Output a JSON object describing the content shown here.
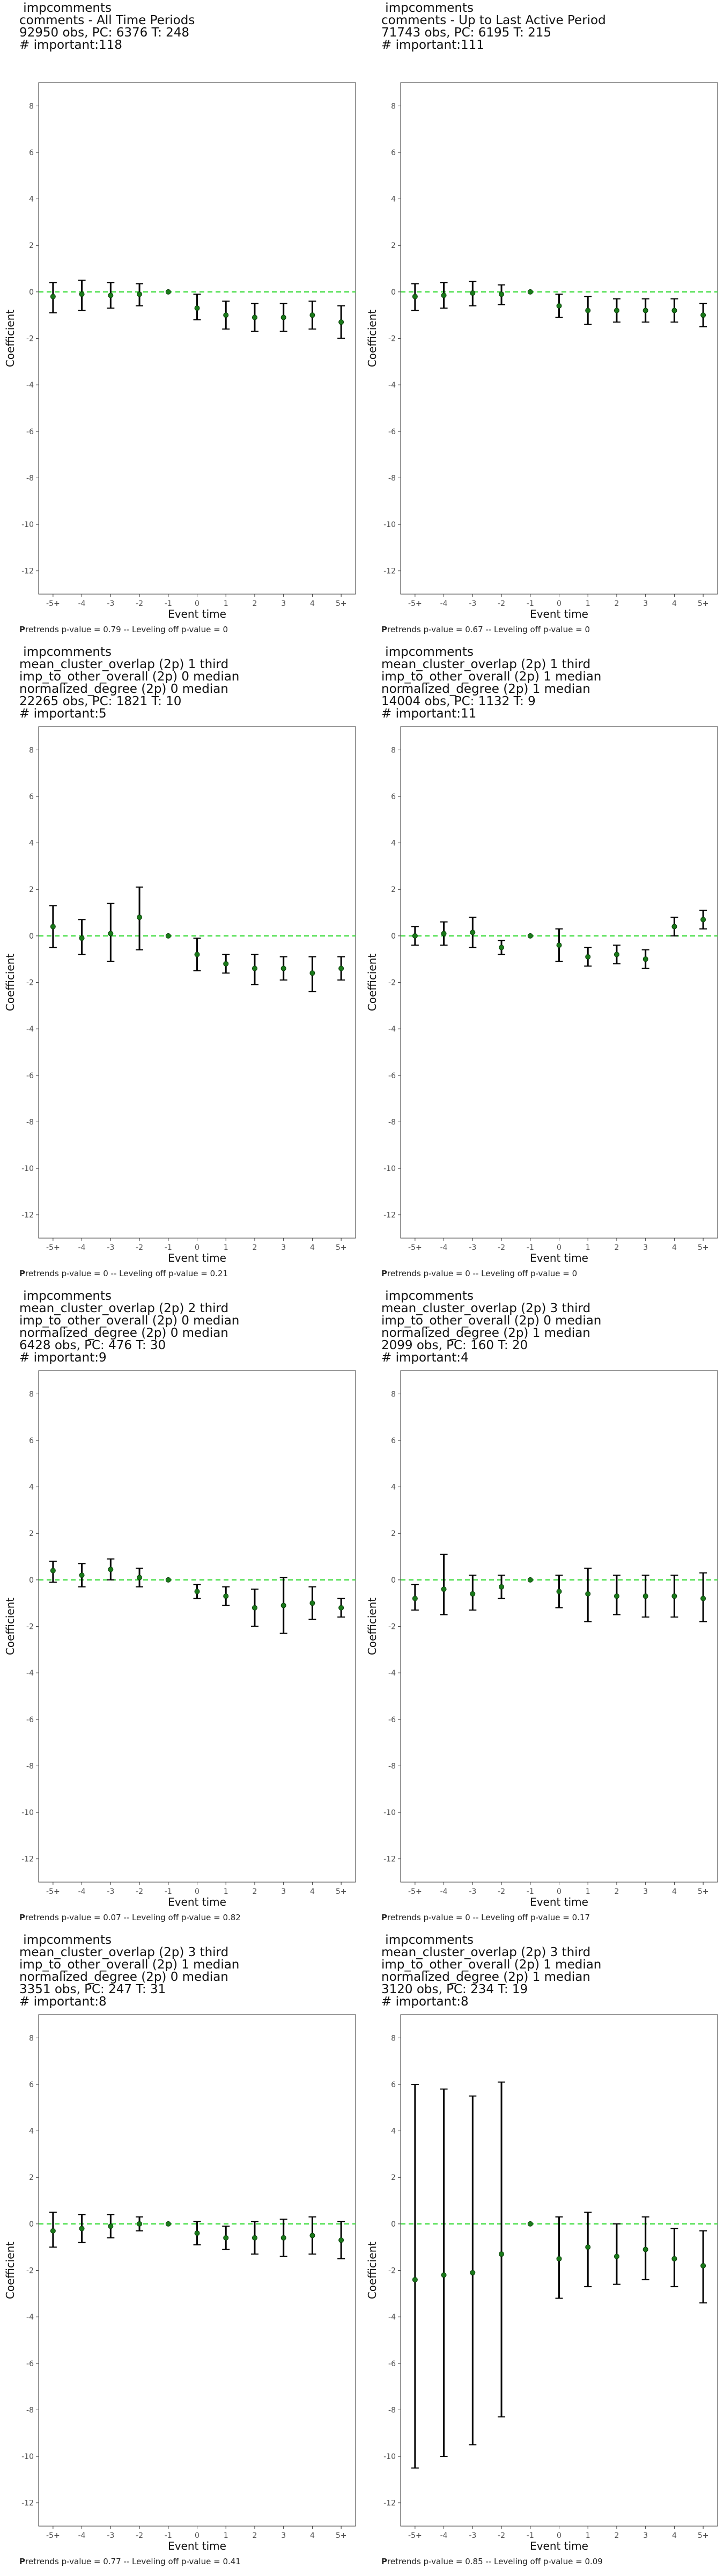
{
  "chart_data": [
    {
      "type": "scatter",
      "title_lines": [
        " impcomments",
        "comments - All Time Periods",
        "92950 obs, PC: 6376 T: 248",
        "# important:118"
      ],
      "xlabel": "Event time",
      "ylabel": "Coefficient",
      "categories": [
        "-5+",
        "-4",
        "-3",
        "-2",
        "-1",
        "0",
        "1",
        "2",
        "3",
        "4",
        "5+"
      ],
      "ylim": [
        -13,
        9
      ],
      "yticks": [
        -12,
        -10,
        -8,
        -6,
        -4,
        -2,
        0,
        2,
        4,
        6,
        8
      ],
      "estimates": [
        -0.2,
        -0.1,
        -0.15,
        -0.1,
        0.0,
        -0.7,
        -1.0,
        -1.1,
        -1.1,
        -1.0,
        -1.3
      ],
      "ci_lower": [
        -0.9,
        -0.8,
        -0.7,
        -0.6,
        0.0,
        -1.2,
        -1.6,
        -1.7,
        -1.7,
        -1.6,
        -2.0
      ],
      "ci_upper": [
        0.4,
        0.5,
        0.4,
        0.35,
        0.0,
        -0.1,
        -0.4,
        -0.5,
        -0.5,
        -0.4,
        -0.6
      ],
      "reference_line": 0,
      "footer_prefix": "P",
      "footer_rest": "retrends p-value = 0.79 -- Leveling off p-value = 0"
    },
    {
      "type": "scatter",
      "title_lines": [
        " impcomments",
        "comments - Up to Last Active Period",
        "71743 obs, PC: 6195 T: 215",
        "# important:111"
      ],
      "xlabel": "Event time",
      "ylabel": "Coefficient",
      "categories": [
        "-5+",
        "-4",
        "-3",
        "-2",
        "-1",
        "0",
        "1",
        "2",
        "3",
        "4",
        "5+"
      ],
      "ylim": [
        -13,
        9
      ],
      "yticks": [
        -12,
        -10,
        -8,
        -6,
        -4,
        -2,
        0,
        2,
        4,
        6,
        8
      ],
      "estimates": [
        -0.2,
        -0.15,
        -0.05,
        -0.1,
        0.0,
        -0.6,
        -0.8,
        -0.8,
        -0.8,
        -0.8,
        -1.0
      ],
      "ci_lower": [
        -0.8,
        -0.7,
        -0.6,
        -0.55,
        0.0,
        -1.1,
        -1.4,
        -1.3,
        -1.3,
        -1.3,
        -1.5
      ],
      "ci_upper": [
        0.35,
        0.4,
        0.45,
        0.3,
        0.0,
        -0.1,
        -0.2,
        -0.3,
        -0.3,
        -0.3,
        -0.5
      ],
      "reference_line": 0,
      "footer_prefix": "P",
      "footer_rest": "retrends p-value = 0.67 -- Leveling off p-value = 0"
    },
    {
      "type": "scatter",
      "title_lines": [
        " impcomments",
        "mean_cluster_overlap (2p) 1 third",
        "imp_to_other_overall (2p) 0 median",
        "normalized_degree (2p) 0 median",
        "22265 obs, PC: 1821 T: 10",
        "# important:5"
      ],
      "xlabel": "Event time",
      "ylabel": "Coefficient",
      "categories": [
        "-5+",
        "-4",
        "-3",
        "-2",
        "-1",
        "0",
        "1",
        "2",
        "3",
        "4",
        "5+"
      ],
      "ylim": [
        -13,
        9
      ],
      "yticks": [
        -12,
        -10,
        -8,
        -6,
        -4,
        -2,
        0,
        2,
        4,
        6,
        8
      ],
      "estimates": [
        0.4,
        -0.1,
        0.1,
        0.8,
        0.0,
        -0.8,
        -1.2,
        -1.4,
        -1.4,
        -1.6,
        -1.4
      ],
      "ci_lower": [
        -0.5,
        -0.8,
        -1.1,
        -0.6,
        0.0,
        -1.5,
        -1.6,
        -2.1,
        -1.9,
        -2.4,
        -1.9
      ],
      "ci_upper": [
        1.3,
        0.7,
        1.4,
        2.1,
        0.0,
        -0.1,
        -0.8,
        -0.8,
        -0.9,
        -0.9,
        -0.9
      ],
      "reference_line": 0,
      "footer_prefix": "P",
      "footer_rest": "retrends p-value = 0 -- Leveling off p-value = 0.21"
    },
    {
      "type": "scatter",
      "title_lines": [
        " impcomments",
        "mean_cluster_overlap (2p) 1 third",
        "imp_to_other_overall (2p) 1 median",
        "normalized_degree (2p) 1 median",
        "14004 obs, PC: 1132 T: 9",
        "# important:11"
      ],
      "xlabel": "Event time",
      "ylabel": "Coefficient",
      "categories": [
        "-5+",
        "-4",
        "-3",
        "-2",
        "-1",
        "0",
        "1",
        "2",
        "3",
        "4",
        "5+"
      ],
      "ylim": [
        -13,
        9
      ],
      "yticks": [
        -12,
        -10,
        -8,
        -6,
        -4,
        -2,
        0,
        2,
        4,
        6,
        8
      ],
      "estimates": [
        0.0,
        0.1,
        0.15,
        -0.5,
        0.0,
        -0.4,
        -0.9,
        -0.8,
        -1.0,
        0.4,
        0.7
      ],
      "ci_lower": [
        -0.4,
        -0.4,
        -0.5,
        -0.8,
        0.0,
        -1.1,
        -1.3,
        -1.2,
        -1.4,
        0.0,
        0.3
      ],
      "ci_upper": [
        0.4,
        0.6,
        0.8,
        -0.2,
        0.0,
        0.3,
        -0.5,
        -0.4,
        -0.6,
        0.8,
        1.1
      ],
      "reference_line": 0,
      "footer_prefix": "P",
      "footer_rest": "retrends p-value = 0 -- Leveling off p-value = 0"
    },
    {
      "type": "scatter",
      "title_lines": [
        " impcomments",
        "mean_cluster_overlap (2p) 2 third",
        "imp_to_other_overall (2p) 0 median",
        "normalized_degree (2p) 0 median",
        "6428 obs, PC: 476 T: 30",
        "# important:9"
      ],
      "xlabel": "Event time",
      "ylabel": "Coefficient",
      "categories": [
        "-5+",
        "-4",
        "-3",
        "-2",
        "-1",
        "0",
        "1",
        "2",
        "3",
        "4",
        "5+"
      ],
      "ylim": [
        -13,
        9
      ],
      "yticks": [
        -12,
        -10,
        -8,
        -6,
        -4,
        -2,
        0,
        2,
        4,
        6,
        8
      ],
      "estimates": [
        0.4,
        0.2,
        0.45,
        0.1,
        0.0,
        -0.5,
        -0.7,
        -1.2,
        -1.1,
        -1.0,
        -1.2
      ],
      "ci_lower": [
        -0.1,
        -0.3,
        0.0,
        -0.3,
        0.0,
        -0.8,
        -1.1,
        -2.0,
        -2.3,
        -1.7,
        -1.6
      ],
      "ci_upper": [
        0.8,
        0.7,
        0.9,
        0.5,
        0.0,
        -0.2,
        -0.3,
        -0.4,
        0.1,
        -0.3,
        -0.8
      ],
      "reference_line": 0,
      "footer_prefix": "P",
      "footer_rest": "retrends p-value = 0.07 -- Leveling off p-value = 0.82"
    },
    {
      "type": "scatter",
      "title_lines": [
        " impcomments",
        "mean_cluster_overlap (2p) 3 third",
        "imp_to_other_overall (2p) 0 median",
        "normalized_degree (2p) 1 median",
        "2099 obs, PC: 160 T: 20",
        "# important:4"
      ],
      "xlabel": "Event time",
      "ylabel": "Coefficient",
      "categories": [
        "-5+",
        "-4",
        "-3",
        "-2",
        "-1",
        "0",
        "1",
        "2",
        "3",
        "4",
        "5+"
      ],
      "ylim": [
        -13,
        9
      ],
      "yticks": [
        -12,
        -10,
        -8,
        -6,
        -4,
        -2,
        0,
        2,
        4,
        6,
        8
      ],
      "estimates": [
        -0.8,
        -0.4,
        -0.6,
        -0.3,
        0.0,
        -0.5,
        -0.6,
        -0.7,
        -0.7,
        -0.7,
        -0.8
      ],
      "ci_lower": [
        -1.3,
        -1.5,
        -1.3,
        -0.8,
        0.0,
        -1.2,
        -1.8,
        -1.5,
        -1.6,
        -1.6,
        -1.8
      ],
      "ci_upper": [
        -0.2,
        1.1,
        0.2,
        0.2,
        0.0,
        0.2,
        0.5,
        0.2,
        0.2,
        0.2,
        0.3
      ],
      "reference_line": 0,
      "footer_prefix": "P",
      "footer_rest": "retrends p-value = 0 -- Leveling off p-value = 0.17"
    },
    {
      "type": "scatter",
      "title_lines": [
        " impcomments",
        "mean_cluster_overlap (2p) 3 third",
        "imp_to_other_overall (2p) 1 median",
        "normalized_degree (2p) 0 median",
        "3351 obs, PC: 247 T: 31",
        "# important:8"
      ],
      "xlabel": "Event time",
      "ylabel": "Coefficient",
      "categories": [
        "-5+",
        "-4",
        "-3",
        "-2",
        "-1",
        "0",
        "1",
        "2",
        "3",
        "4",
        "5+"
      ],
      "ylim": [
        -13,
        9
      ],
      "yticks": [
        -12,
        -10,
        -8,
        -6,
        -4,
        -2,
        0,
        2,
        4,
        6,
        8
      ],
      "estimates": [
        -0.3,
        -0.2,
        -0.1,
        0.0,
        0.0,
        -0.4,
        -0.6,
        -0.6,
        -0.6,
        -0.5,
        -0.7
      ],
      "ci_lower": [
        -1.0,
        -0.8,
        -0.6,
        -0.3,
        0.0,
        -0.9,
        -1.1,
        -1.3,
        -1.4,
        -1.3,
        -1.5
      ],
      "ci_upper": [
        0.5,
        0.4,
        0.4,
        0.3,
        0.0,
        0.1,
        -0.1,
        0.1,
        0.2,
        0.3,
        0.1
      ],
      "reference_line": 0,
      "footer_prefix": "P",
      "footer_rest": "retrends p-value = 0.77 -- Leveling off p-value = 0.41"
    },
    {
      "type": "scatter",
      "title_lines": [
        " impcomments",
        "mean_cluster_overlap (2p) 3 third",
        "imp_to_other_overall (2p) 1 median",
        "normalized_degree (2p) 1 median",
        "3120 obs, PC: 234 T: 19",
        "# important:8"
      ],
      "xlabel": "Event time",
      "ylabel": "Coefficient",
      "categories": [
        "-5+",
        "-4",
        "-3",
        "-2",
        "-1",
        "0",
        "1",
        "2",
        "3",
        "4",
        "5+"
      ],
      "ylim": [
        -13,
        9
      ],
      "yticks": [
        -12,
        -10,
        -8,
        -6,
        -4,
        -2,
        0,
        2,
        4,
        6,
        8
      ],
      "estimates": [
        -2.4,
        -2.2,
        -2.1,
        -1.3,
        0.0,
        -1.5,
        -1.0,
        -1.4,
        -1.1,
        -1.5,
        -1.8
      ],
      "ci_lower": [
        -10.5,
        -10.0,
        -9.5,
        -8.3,
        0.0,
        -3.2,
        -2.7,
        -2.6,
        -2.4,
        -2.7,
        -3.4
      ],
      "ci_upper": [
        6.0,
        5.8,
        5.5,
        6.1,
        0.0,
        0.3,
        0.5,
        0.0,
        0.3,
        -0.2,
        -0.3
      ],
      "reference_line": 0,
      "footer_prefix": "P",
      "footer_rest": "retrends p-value = 0.85 -- Leveling off p-value = 0.09"
    }
  ]
}
